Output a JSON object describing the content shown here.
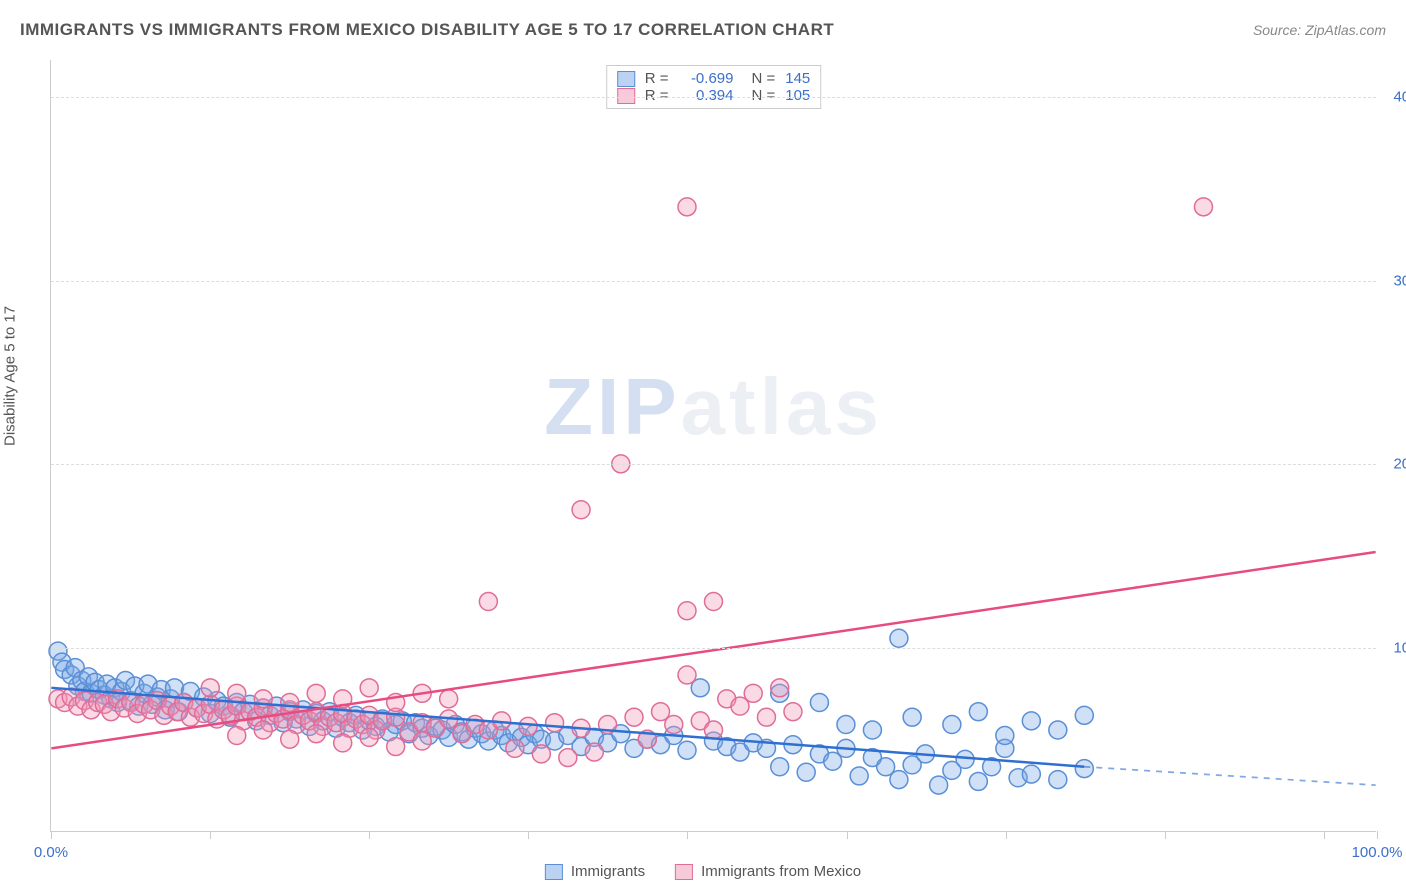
{
  "title": "IMMIGRANTS VS IMMIGRANTS FROM MEXICO DISABILITY AGE 5 TO 17 CORRELATION CHART",
  "source": "Source: ZipAtlas.com",
  "watermark": "ZIPatlas",
  "yaxis_label": "Disability Age 5 to 17",
  "chart": {
    "type": "scatter",
    "xlim": [
      0,
      100
    ],
    "ylim": [
      0,
      42
    ],
    "xtick_positions": [
      0,
      12,
      24,
      36,
      48,
      60,
      72,
      84,
      96,
      100
    ],
    "xtick_labels_shown": {
      "0": "0.0%",
      "100": "100.0%"
    },
    "ytick_positions": [
      10,
      20,
      30,
      40
    ],
    "ytick_labels": [
      "10.0%",
      "20.0%",
      "30.0%",
      "40.0%"
    ],
    "gridline_color": "#dddddd",
    "axis_color": "#cccccc",
    "background": "#ffffff",
    "label_color_x": "#3b6fc9",
    "label_color_y": "#3b6fc9",
    "axis_title_color": "#555555",
    "marker_radius": 9,
    "marker_stroke_width": 1.5,
    "series": [
      {
        "name": "Immigrants",
        "fill": "rgba(120,165,230,0.35)",
        "stroke": "#5a8fd6",
        "trend": {
          "x1": 0,
          "y1": 7.8,
          "x2": 78,
          "y2": 3.5,
          "solid_color": "#2e6fd1",
          "dash_to_x": 100,
          "dash_to_y": 2.5,
          "width": 2.5
        },
        "points": [
          [
            0.5,
            9.8
          ],
          [
            0.8,
            9.2
          ],
          [
            1,
            8.8
          ],
          [
            1.5,
            8.5
          ],
          [
            1.8,
            8.9
          ],
          [
            2,
            7.9
          ],
          [
            2.3,
            8.2
          ],
          [
            2.5,
            7.6
          ],
          [
            2.8,
            8.4
          ],
          [
            3,
            7.5
          ],
          [
            3.3,
            8.1
          ],
          [
            3.6,
            7.7
          ],
          [
            4,
            7.4
          ],
          [
            4.2,
            8.0
          ],
          [
            4.5,
            7.2
          ],
          [
            4.8,
            7.8
          ],
          [
            5,
            7.0
          ],
          [
            5.3,
            7.6
          ],
          [
            5.6,
            8.2
          ],
          [
            6,
            7.1
          ],
          [
            6.3,
            7.9
          ],
          [
            6.6,
            6.8
          ],
          [
            7,
            7.5
          ],
          [
            7.3,
            8.0
          ],
          [
            7.6,
            6.9
          ],
          [
            8,
            7.3
          ],
          [
            8.3,
            7.7
          ],
          [
            8.6,
            6.6
          ],
          [
            9,
            7.2
          ],
          [
            9.3,
            7.8
          ],
          [
            9.6,
            6.5
          ],
          [
            10,
            7.0
          ],
          [
            10.5,
            7.6
          ],
          [
            11,
            6.7
          ],
          [
            11.5,
            7.3
          ],
          [
            12,
            6.4
          ],
          [
            12.5,
            7.1
          ],
          [
            13,
            6.8
          ],
          [
            13.5,
            6.2
          ],
          [
            14,
            7.0
          ],
          [
            14.5,
            6.5
          ],
          [
            15,
            6.9
          ],
          [
            15.5,
            6.0
          ],
          [
            16,
            6.7
          ],
          [
            16.5,
            6.3
          ],
          [
            17,
            6.8
          ],
          [
            17.5,
            5.9
          ],
          [
            18,
            6.5
          ],
          [
            18.5,
            6.1
          ],
          [
            19,
            6.6
          ],
          [
            19.5,
            5.7
          ],
          [
            20,
            6.4
          ],
          [
            20.5,
            6.0
          ],
          [
            21,
            6.5
          ],
          [
            21.5,
            5.6
          ],
          [
            22,
            6.2
          ],
          [
            22.5,
            5.9
          ],
          [
            23,
            6.3
          ],
          [
            23.5,
            5.5
          ],
          [
            24,
            6.0
          ],
          [
            24.5,
            5.7
          ],
          [
            25,
            6.1
          ],
          [
            25.5,
            5.4
          ],
          [
            26,
            5.8
          ],
          [
            26.5,
            6.0
          ],
          [
            27,
            5.3
          ],
          [
            27.5,
            5.9
          ],
          [
            28,
            5.6
          ],
          [
            28.5,
            5.2
          ],
          [
            29,
            5.7
          ],
          [
            29.5,
            5.5
          ],
          [
            30,
            5.1
          ],
          [
            30.5,
            5.8
          ],
          [
            31,
            5.4
          ],
          [
            31.5,
            5.0
          ],
          [
            32,
            5.6
          ],
          [
            32.5,
            5.3
          ],
          [
            33,
            4.9
          ],
          [
            33.5,
            5.5
          ],
          [
            34,
            5.2
          ],
          [
            34.5,
            4.8
          ],
          [
            35,
            5.4
          ],
          [
            35.5,
            5.1
          ],
          [
            36,
            4.7
          ],
          [
            36.5,
            5.3
          ],
          [
            37,
            5.0
          ],
          [
            38,
            4.9
          ],
          [
            39,
            5.2
          ],
          [
            40,
            4.6
          ],
          [
            41,
            5.1
          ],
          [
            42,
            4.8
          ],
          [
            43,
            5.3
          ],
          [
            44,
            4.5
          ],
          [
            45,
            5.0
          ],
          [
            46,
            4.7
          ],
          [
            47,
            5.2
          ],
          [
            48,
            4.4
          ],
          [
            49,
            7.8
          ],
          [
            50,
            4.9
          ],
          [
            51,
            4.6
          ],
          [
            52,
            4.3
          ],
          [
            53,
            4.8
          ],
          [
            54,
            4.5
          ],
          [
            55,
            3.5
          ],
          [
            56,
            4.7
          ],
          [
            57,
            3.2
          ],
          [
            58,
            4.2
          ],
          [
            59,
            3.8
          ],
          [
            60,
            4.5
          ],
          [
            61,
            3.0
          ],
          [
            62,
            4.0
          ],
          [
            63,
            3.5
          ],
          [
            64,
            2.8
          ],
          [
            65,
            3.6
          ],
          [
            66,
            4.2
          ],
          [
            67,
            2.5
          ],
          [
            68,
            3.3
          ],
          [
            69,
            3.9
          ],
          [
            70,
            2.7
          ],
          [
            71,
            3.5
          ],
          [
            72,
            4.5
          ],
          [
            73,
            2.9
          ],
          [
            64,
            10.5
          ],
          [
            55,
            7.5
          ],
          [
            58,
            7.0
          ],
          [
            60,
            5.8
          ],
          [
            62,
            5.5
          ],
          [
            65,
            6.2
          ],
          [
            68,
            5.8
          ],
          [
            70,
            6.5
          ],
          [
            72,
            5.2
          ],
          [
            74,
            6.0
          ],
          [
            76,
            5.5
          ],
          [
            78,
            6.3
          ],
          [
            74,
            3.1
          ],
          [
            76,
            2.8
          ],
          [
            78,
            3.4
          ]
        ]
      },
      {
        "name": "Immigrants from Mexico",
        "fill": "rgba(240,150,180,0.35)",
        "stroke": "#e06d98",
        "trend": {
          "x1": 0,
          "y1": 4.5,
          "x2": 100,
          "y2": 15.2,
          "solid_color": "#e84b81",
          "width": 2.5
        },
        "points": [
          [
            0.5,
            7.2
          ],
          [
            1,
            7.0
          ],
          [
            1.5,
            7.3
          ],
          [
            2,
            6.8
          ],
          [
            2.5,
            7.1
          ],
          [
            3,
            6.6
          ],
          [
            3.5,
            7.0
          ],
          [
            4,
            6.9
          ],
          [
            4.5,
            6.5
          ],
          [
            5,
            7.2
          ],
          [
            5.5,
            6.7
          ],
          [
            6,
            7.0
          ],
          [
            6.5,
            6.4
          ],
          [
            7,
            6.9
          ],
          [
            7.5,
            6.6
          ],
          [
            8,
            7.1
          ],
          [
            8.5,
            6.3
          ],
          [
            9,
            6.8
          ],
          [
            9.5,
            6.5
          ],
          [
            10,
            7.0
          ],
          [
            10.5,
            6.2
          ],
          [
            11,
            6.7
          ],
          [
            11.5,
            6.4
          ],
          [
            12,
            6.9
          ],
          [
            12.5,
            6.1
          ],
          [
            13,
            6.6
          ],
          [
            13.5,
            6.3
          ],
          [
            14,
            6.8
          ],
          [
            14.5,
            6.0
          ],
          [
            15,
            6.5
          ],
          [
            15.5,
            6.2
          ],
          [
            16,
            6.7
          ],
          [
            16.5,
            5.9
          ],
          [
            17,
            6.4
          ],
          [
            17.5,
            6.1
          ],
          [
            18,
            6.6
          ],
          [
            18.5,
            5.8
          ],
          [
            19,
            6.3
          ],
          [
            19.5,
            6.0
          ],
          [
            20,
            6.5
          ],
          [
            20.5,
            5.7
          ],
          [
            21,
            6.2
          ],
          [
            21.5,
            5.9
          ],
          [
            22,
            6.4
          ],
          [
            22.5,
            5.6
          ],
          [
            23,
            6.1
          ],
          [
            23.5,
            5.8
          ],
          [
            24,
            6.3
          ],
          [
            24.5,
            5.5
          ],
          [
            25,
            6.0
          ],
          [
            26,
            6.2
          ],
          [
            27,
            5.4
          ],
          [
            28,
            5.9
          ],
          [
            29,
            5.6
          ],
          [
            30,
            6.1
          ],
          [
            31,
            5.3
          ],
          [
            32,
            5.8
          ],
          [
            33,
            5.5
          ],
          [
            34,
            6.0
          ],
          [
            35,
            4.5
          ],
          [
            36,
            5.7
          ],
          [
            37,
            4.2
          ],
          [
            38,
            5.9
          ],
          [
            39,
            4.0
          ],
          [
            40,
            5.6
          ],
          [
            41,
            4.3
          ],
          [
            42,
            5.8
          ],
          [
            33,
            12.5
          ],
          [
            40,
            17.5
          ],
          [
            43,
            20.0
          ],
          [
            44,
            6.2
          ],
          [
            45,
            5.0
          ],
          [
            46,
            6.5
          ],
          [
            47,
            5.8
          ],
          [
            48,
            8.5
          ],
          [
            48,
            12.0
          ],
          [
            50,
            12.5
          ],
          [
            49,
            6.0
          ],
          [
            50,
            5.5
          ],
          [
            51,
            7.2
          ],
          [
            52,
            6.8
          ],
          [
            53,
            7.5
          ],
          [
            54,
            6.2
          ],
          [
            55,
            7.8
          ],
          [
            56,
            6.5
          ],
          [
            48,
            34.0
          ],
          [
            87,
            34.0
          ],
          [
            12,
            7.8
          ],
          [
            14,
            7.5
          ],
          [
            16,
            7.2
          ],
          [
            18,
            7.0
          ],
          [
            20,
            7.5
          ],
          [
            22,
            7.2
          ],
          [
            24,
            7.8
          ],
          [
            26,
            7.0
          ],
          [
            28,
            7.5
          ],
          [
            30,
            7.2
          ],
          [
            14,
            5.2
          ],
          [
            16,
            5.5
          ],
          [
            18,
            5.0
          ],
          [
            20,
            5.3
          ],
          [
            22,
            4.8
          ],
          [
            24,
            5.1
          ],
          [
            26,
            4.6
          ],
          [
            28,
            4.9
          ]
        ]
      }
    ]
  },
  "stats": [
    {
      "swatch_fill": "rgba(120,165,230,0.5)",
      "swatch_stroke": "#5a8fd6",
      "r_label": "R =",
      "r_value": "-0.699",
      "n_label": "N =",
      "n_value": "145"
    },
    {
      "swatch_fill": "rgba(240,150,180,0.5)",
      "swatch_stroke": "#e06d98",
      "r_label": "R =",
      "r_value": "0.394",
      "n_label": "N =",
      "n_value": "105"
    }
  ],
  "stats_value_color": "#3b6fc9",
  "stats_label_color": "#555555",
  "legend": [
    {
      "swatch_fill": "rgba(120,165,230,0.5)",
      "swatch_stroke": "#5a8fd6",
      "label": "Immigrants"
    },
    {
      "swatch_fill": "rgba(240,150,180,0.5)",
      "swatch_stroke": "#e06d98",
      "label": "Immigrants from Mexico"
    }
  ]
}
